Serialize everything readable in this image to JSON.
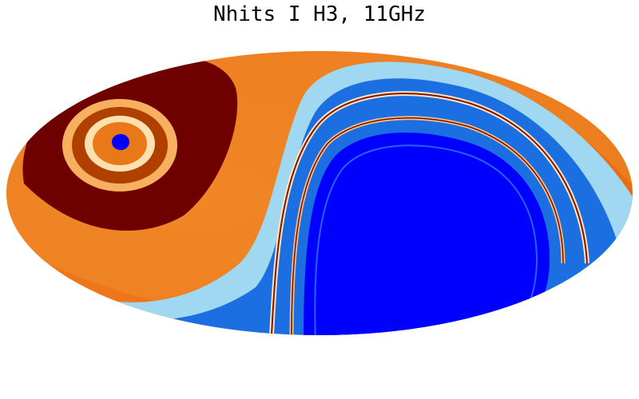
{
  "title": "Nhits I H3, 11GHz"
}
